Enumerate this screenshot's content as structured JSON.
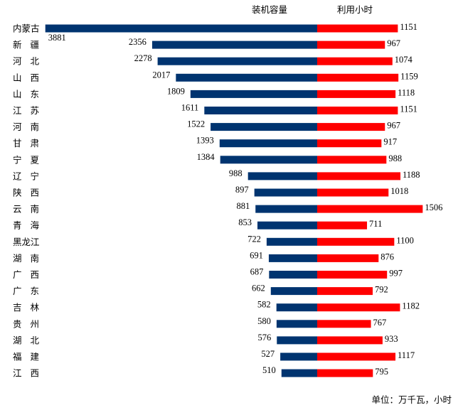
{
  "chart_data": {
    "type": "bar",
    "orientation": "horizontal-butterfly",
    "categories": [
      "内蒙古",
      "新疆",
      "河北",
      "山西",
      "山东",
      "江苏",
      "河南",
      "甘肃",
      "宁夏",
      "辽宁",
      "陕西",
      "云南",
      "青海",
      "黑龙江",
      "湖南",
      "广西",
      "广东",
      "吉林",
      "贵州",
      "湖北",
      "福建",
      "江西"
    ],
    "series": [
      {
        "name": "装机容量",
        "color": "#003470",
        "side": "left",
        "values": [
          3881,
          2356,
          2278,
          2017,
          1809,
          1611,
          1522,
          1393,
          1384,
          988,
          897,
          881,
          853,
          722,
          691,
          687,
          662,
          582,
          580,
          576,
          527,
          510
        ]
      },
      {
        "name": "利用小时",
        "color": "#FF0000",
        "side": "right",
        "values": [
          1151,
          967,
          1074,
          1159,
          1118,
          1151,
          967,
          917,
          988,
          1188,
          1018,
          1506,
          711,
          1100,
          876,
          997,
          792,
          1182,
          767,
          933,
          1117,
          795
        ]
      }
    ],
    "unit_note": "单位：万千瓦，小时",
    "grid": false,
    "legend": "top-center"
  }
}
